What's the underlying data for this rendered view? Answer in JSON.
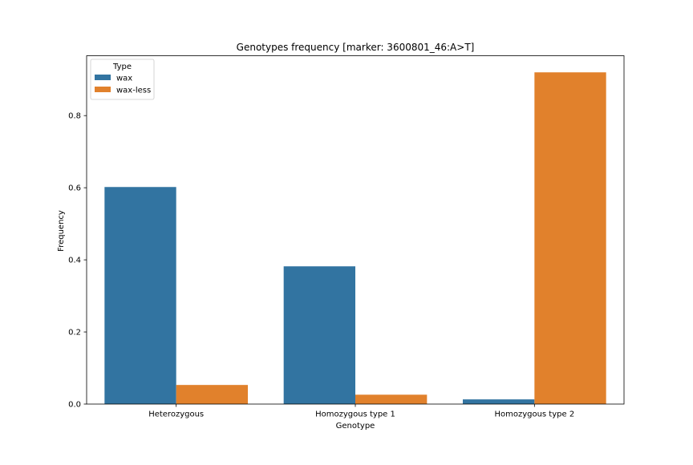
{
  "chart_data": {
    "type": "bar",
    "title": "Genotypes frequency [marker: 3600801_46:A>T]",
    "xlabel": "Genotype",
    "ylabel": "Frequency",
    "categories": [
      "Heterozygous",
      "Homozygous type 1",
      "Homozygous type 2"
    ],
    "series": [
      {
        "name": "wax",
        "color": "#3274a1",
        "values": [
          0.602,
          0.382,
          0.013
        ]
      },
      {
        "name": "wax-less",
        "color": "#e1812c",
        "values": [
          0.053,
          0.026,
          0.92
        ]
      }
    ],
    "ylim": [
      0,
      0.9661
    ],
    "yticks": [
      0.0,
      0.2,
      0.4,
      0.6,
      0.8
    ],
    "ytick_labels": [
      "0.0",
      "0.2",
      "0.4",
      "0.6",
      "0.8"
    ],
    "legend": {
      "title": "Type",
      "placement": "top-left"
    },
    "grid": false
  }
}
